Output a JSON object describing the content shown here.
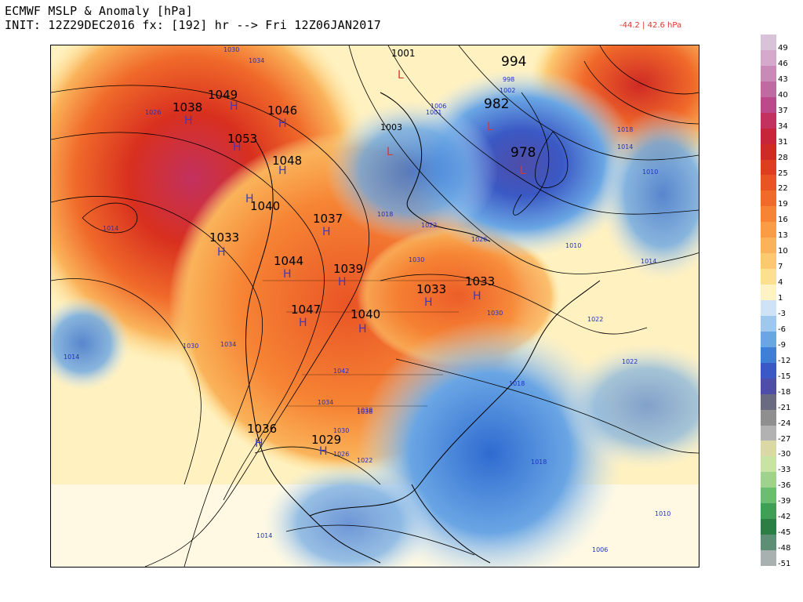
{
  "header": {
    "title_line1": "ECMWF MSLP & Anomaly [hPa]",
    "title_line2": "INIT: 12Z29DEC2016 fx: [192] hr --> Fri 12Z06JAN2017",
    "anomaly_range": "-44.2 | 42.6 hPa"
  },
  "colorbar": {
    "labels": [
      "49",
      "46",
      "43",
      "40",
      "37",
      "34",
      "31",
      "28",
      "25",
      "22",
      "19",
      "16",
      "13",
      "10",
      "7",
      "4",
      "1",
      "-3",
      "-6",
      "-9",
      "-12",
      "-15",
      "-18",
      "-21",
      "-24",
      "-27",
      "-30",
      "-33",
      "-36",
      "-39",
      "-42",
      "-45",
      "-48",
      "-51"
    ],
    "colors": [
      "#d8c3d9",
      "#d4a9cc",
      "#c98ab7",
      "#c06aa2",
      "#bb4a8b",
      "#c2315f",
      "#c8243a",
      "#cf2a24",
      "#de3d1f",
      "#e95425",
      "#f06a2a",
      "#f68434",
      "#f99c45",
      "#fab35a",
      "#fcc870",
      "#fde08f",
      "#fff3c4",
      "#cfe3f7",
      "#9fc8ef",
      "#6aa6e4",
      "#3f7fd6",
      "#3b59c4",
      "#4e4da8",
      "#6a6a80",
      "#8f8f8f",
      "#b2b2b2",
      "#dad9a4",
      "#c9e3a2",
      "#9fd38c",
      "#6bbd70",
      "#3f9f54",
      "#2b7f45",
      "#5d8f77",
      "#a9b0b0"
    ]
  },
  "map": {
    "highs": [
      {
        "label": "H",
        "value": "1049"
      },
      {
        "label": "H",
        "value": "1046"
      },
      {
        "label": "H",
        "value": "1038"
      },
      {
        "label": "H",
        "value": "1053"
      },
      {
        "label": "H",
        "value": "1048"
      },
      {
        "label": "H",
        "value": "1040"
      },
      {
        "label": "H",
        "value": "1037"
      },
      {
        "label": "H",
        "value": "1033"
      },
      {
        "label": "H",
        "value": "1044"
      },
      {
        "label": "H",
        "value": "1039"
      },
      {
        "label": "H",
        "value": "1033"
      },
      {
        "label": "H",
        "value": "1033"
      },
      {
        "label": "H",
        "value": "1047"
      },
      {
        "label": "H",
        "value": "1040"
      },
      {
        "label": "H",
        "value": "1036"
      },
      {
        "label": "H",
        "value": "1029"
      }
    ],
    "lows": [
      {
        "label": "L",
        "value": "1001"
      },
      {
        "label": "L",
        "value": "994"
      },
      {
        "label": "L",
        "value": "982"
      },
      {
        "label": "L",
        "value": "978"
      },
      {
        "label": "L",
        "value": "1003"
      }
    ],
    "isobar_labels": [
      "1026",
      "1034",
      "1030",
      "1014",
      "1030",
      "1014",
      "1030",
      "1018",
      "1022",
      "1026",
      "1030",
      "1034",
      "1038",
      "1022",
      "1010",
      "1006",
      "1002",
      "998",
      "1014",
      "1018",
      "1022",
      "1010",
      "1014",
      "1018",
      "1022",
      "1026",
      "1030",
      "1034",
      "1038",
      "1042",
      "1018",
      "1014",
      "1010",
      "1006",
      "1001"
    ]
  },
  "colors": {
    "ocean_high": "#fff3c4",
    "positive_anomaly": "#e95425",
    "negative_anomaly": "#3f7fd6"
  }
}
